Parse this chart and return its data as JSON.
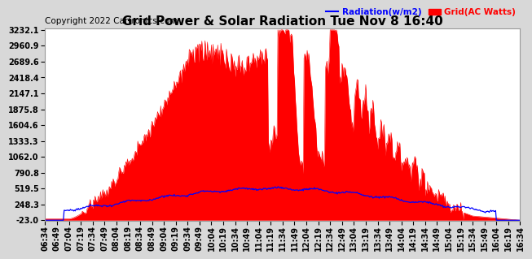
{
  "title": "Grid Power & Solar Radiation Tue Nov 8 16:40",
  "copyright": "Copyright 2022 Cartronics.com",
  "legend_radiation": "Radiation(w/m2)",
  "legend_grid": "Grid(AC Watts)",
  "color_radiation": "#0000ff",
  "color_grid": "#ff0000",
  "bg_color": "#d8d8d8",
  "plot_bg_color": "#ffffff",
  "grid_color": "#aaaaaa",
  "ymin": -23.0,
  "ymax": 3232.1,
  "yticks": [
    -23.0,
    248.3,
    519.5,
    790.8,
    1062.0,
    1333.3,
    1604.6,
    1875.8,
    2147.1,
    2418.4,
    2689.6,
    2960.9,
    3232.1
  ],
  "time_labels": [
    "06:34",
    "06:49",
    "07:04",
    "07:19",
    "07:34",
    "07:49",
    "08:04",
    "08:19",
    "08:34",
    "08:49",
    "09:04",
    "09:19",
    "09:34",
    "09:49",
    "10:04",
    "10:19",
    "10:34",
    "10:49",
    "11:04",
    "11:19",
    "11:34",
    "11:49",
    "12:04",
    "12:19",
    "12:34",
    "12:49",
    "13:04",
    "13:19",
    "13:34",
    "13:49",
    "14:04",
    "14:19",
    "14:34",
    "14:49",
    "15:04",
    "15:19",
    "15:34",
    "15:49",
    "16:04",
    "16:19",
    "16:34"
  ],
  "title_fontsize": 11,
  "tick_fontsize": 7,
  "copyright_fontsize": 7.5
}
